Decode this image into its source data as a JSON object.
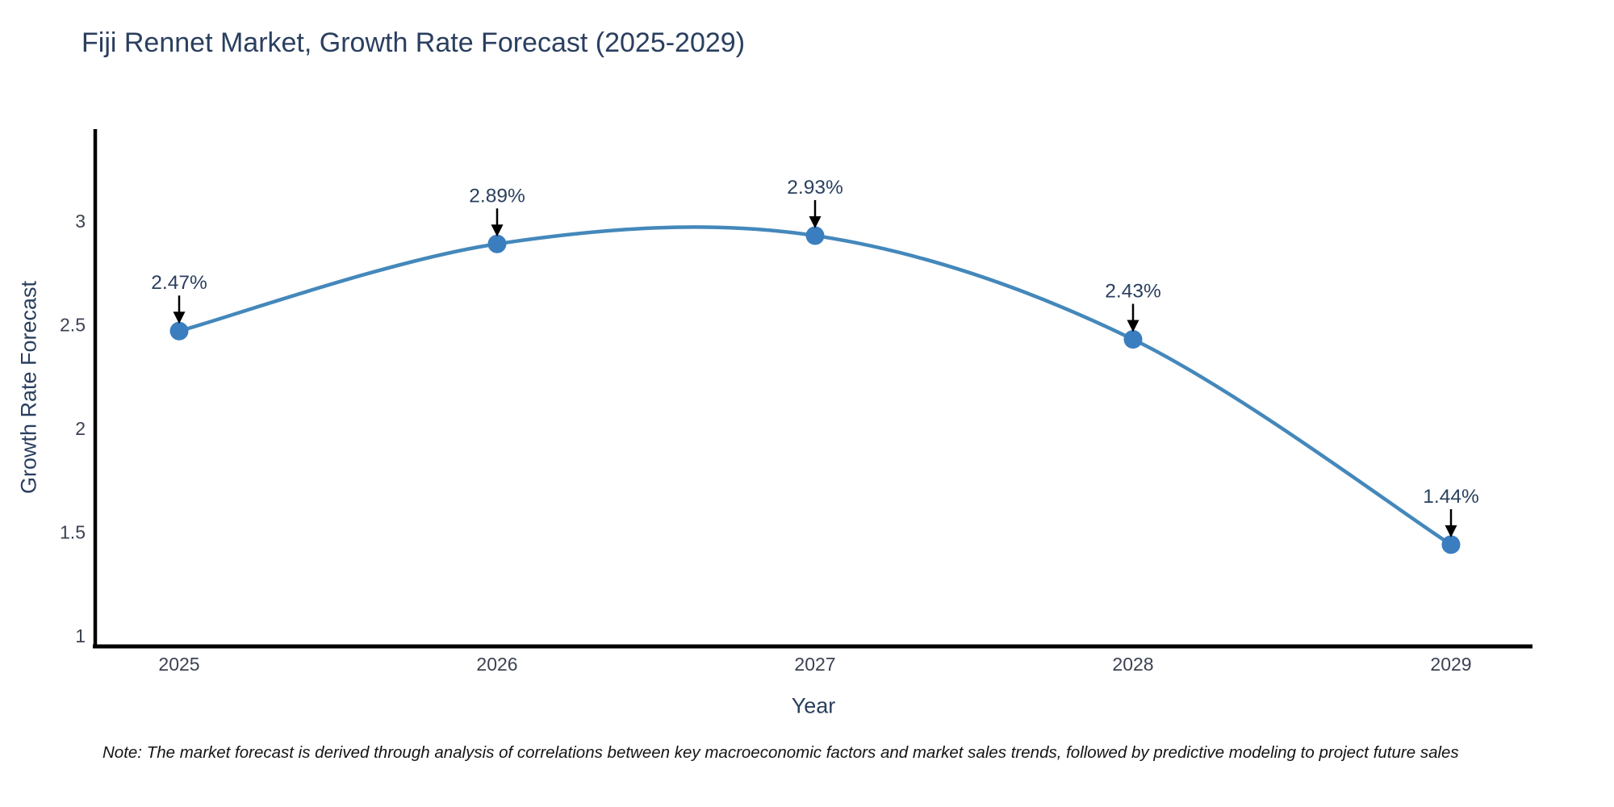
{
  "chart_data": {
    "type": "line",
    "title": "Fiji Rennet Market, Growth Rate Forecast (2025-2029)",
    "xlabel": "Year",
    "ylabel": "Growth Rate Forecast",
    "x": [
      2025,
      2026,
      2027,
      2028,
      2029
    ],
    "series": [
      {
        "name": "Growth Rate Forecast",
        "values": [
          2.47,
          2.89,
          2.93,
          2.43,
          1.44
        ]
      }
    ],
    "point_labels": [
      "2.47%",
      "2.89%",
      "2.93%",
      "2.43%",
      "1.44%"
    ],
    "yticks": [
      1,
      1.5,
      2,
      2.5,
      3
    ],
    "ytick_labels": [
      "1",
      "1.5",
      "2",
      "2.5",
      "3"
    ],
    "ylim": [
      0.95,
      3.45
    ],
    "grid": false,
    "legend": "none",
    "line_shape": "spline",
    "colors": {
      "line": "#4488bb",
      "marker": "#3a7ebf",
      "axis": "#000000",
      "tick_text": "#3b4252",
      "title_text": "#2a3f5f",
      "annotation_text": "#2a3f5f",
      "annotation_arrow": "#000000",
      "background": "#ffffff"
    }
  },
  "note": "Note: The market forecast is derived through analysis of correlations between key macroeconomic factors and market sales trends, followed by predictive modeling to project future sales"
}
